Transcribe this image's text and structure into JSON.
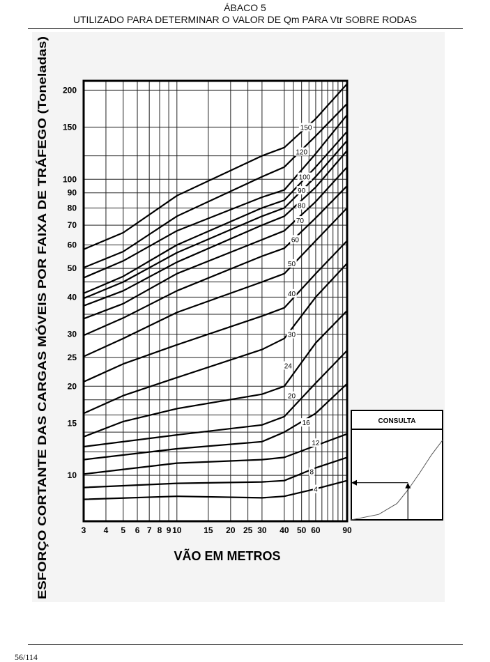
{
  "page": {
    "title": "ÁBACO 5",
    "subtitle": "UTILIZADO PARA DETERMINAR O VALOR DE Qm PARA Vtr SOBRE RODAS",
    "page_number": "56/114"
  },
  "chart_data": [
    {
      "type": "line",
      "title": "",
      "xlabel": "VÃO EM METROS",
      "ylabel": "ESFORÇO CORTANTE DAS CARGAS MÓVEIS POR FAIXA DE TRÁFEGO (Toneladas)",
      "x_scale": "log",
      "y_scale": "log",
      "xlim": [
        3,
        90
      ],
      "ylim": [
        7,
        215
      ],
      "grid": true,
      "x_grid": [
        3,
        4,
        5,
        6,
        7,
        8,
        9,
        10,
        15,
        20,
        25,
        30,
        40,
        45,
        50,
        55,
        60,
        65,
        70,
        75,
        80,
        85,
        90
      ],
      "y_grid": [
        10,
        12,
        14,
        16,
        18,
        20,
        25,
        30,
        35,
        40,
        45,
        50,
        60,
        70,
        80,
        90,
        100,
        120,
        150,
        200
      ],
      "x_ticks": [
        {
          "v": 3,
          "t": "3"
        },
        {
          "v": 4,
          "t": "4"
        },
        {
          "v": 5,
          "t": "5"
        },
        {
          "v": 6,
          "t": "6"
        },
        {
          "v": 7,
          "t": "7"
        },
        {
          "v": 8,
          "t": "8"
        },
        {
          "v": 9,
          "t": "9"
        },
        {
          "v": 10,
          "t": "10"
        },
        {
          "v": 15,
          "t": "15"
        },
        {
          "v": 20,
          "t": "20"
        },
        {
          "v": 25,
          "t": "25"
        },
        {
          "v": 30,
          "t": "30"
        },
        {
          "v": 40,
          "t": "40"
        },
        {
          "v": 50,
          "t": "50"
        },
        {
          "v": 60,
          "t": "60"
        },
        {
          "v": 90,
          "t": "90"
        }
      ],
      "y_ticks": [
        {
          "v": 10,
          "t": "10"
        },
        {
          "v": 15,
          "t": "15"
        },
        {
          "v": 20,
          "t": "20"
        },
        {
          "v": 25,
          "t": "25"
        },
        {
          "v": 30,
          "t": "30"
        },
        {
          "v": 40,
          "t": "40"
        },
        {
          "v": 50,
          "t": "50"
        },
        {
          "v": 60,
          "t": "60"
        },
        {
          "v": 70,
          "t": "70"
        },
        {
          "v": 80,
          "t": "80"
        },
        {
          "v": 90,
          "t": "90"
        },
        {
          "v": 100,
          "t": "100"
        },
        {
          "v": 150,
          "t": "150"
        },
        {
          "v": 200,
          "t": "200"
        }
      ],
      "series": [
        {
          "name": "4",
          "label_x": 60,
          "label_y": 9,
          "points": [
            [
              3,
              8.3
            ],
            [
              10,
              8.5
            ],
            [
              30,
              8.4
            ],
            [
              40,
              8.5
            ],
            [
              60,
              9.0
            ],
            [
              90,
              9.6
            ]
          ]
        },
        {
          "name": "8",
          "label_x": 57,
          "label_y": 10.3,
          "points": [
            [
              3,
              9.1
            ],
            [
              10,
              9.4
            ],
            [
              30,
              9.5
            ],
            [
              40,
              9.6
            ],
            [
              60,
              10.6
            ],
            [
              90,
              11.5
            ]
          ]
        },
        {
          "name": "12",
          "label_x": 60,
          "label_y": 12.9,
          "points": [
            [
              3,
              10.1
            ],
            [
              10,
              11.0
            ],
            [
              30,
              11.3
            ],
            [
              40,
              11.5
            ],
            [
              60,
              12.6
            ],
            [
              90,
              13.8
            ]
          ]
        },
        {
          "name": "",
          "points": [
            [
              3,
              11.3
            ],
            [
              10,
              12.3
            ],
            [
              30,
              13.0
            ],
            [
              40,
              14.0
            ],
            [
              60,
              16.2
            ],
            [
              90,
              20.4
            ]
          ]
        },
        {
          "name": "16",
          "label_x": 53,
          "label_y": 15.1,
          "points": [
            [
              3,
              12.5
            ],
            [
              10,
              13.7
            ],
            [
              30,
              14.8
            ],
            [
              40,
              15.8
            ],
            [
              60,
              20.5
            ],
            [
              90,
              26.4
            ]
          ]
        },
        {
          "name": "20",
          "label_x": 44,
          "label_y": 18.6,
          "points": [
            [
              3,
              13.5
            ],
            [
              5,
              15.2
            ],
            [
              10,
              16.8
            ],
            [
              30,
              18.8
            ],
            [
              40,
              20.0
            ],
            [
              60,
              28.0
            ],
            [
              90,
              36.0
            ]
          ]
        },
        {
          "name": "24",
          "label_x": 42,
          "label_y": 23.5,
          "points": [
            [
              3,
              16.2
            ],
            [
              5,
              18.6
            ],
            [
              10,
              21.4
            ],
            [
              30,
              26.6
            ],
            [
              40,
              29.0
            ],
            [
              60,
              40.0
            ],
            [
              90,
              52.0
            ]
          ]
        },
        {
          "name": "30",
          "label_x": 44,
          "label_y": 30.0,
          "points": [
            [
              3,
              20.7
            ],
            [
              5,
              23.8
            ],
            [
              10,
              27.6
            ],
            [
              30,
              34.5
            ],
            [
              40,
              36.8
            ],
            [
              60,
              48.0
            ],
            [
              90,
              62.0
            ]
          ]
        },
        {
          "name": "40",
          "label_x": 44,
          "label_y": 41.2,
          "points": [
            [
              3,
              25.2
            ],
            [
              5,
              29.0
            ],
            [
              10,
              35.5
            ],
            [
              30,
              45.0
            ],
            [
              40,
              48.0
            ],
            [
              60,
              62.0
            ],
            [
              90,
              80.0
            ]
          ]
        },
        {
          "name": "50",
          "label_x": 44,
          "label_y": 52.0,
          "points": [
            [
              3,
              29.7
            ],
            [
              5,
              34.0
            ],
            [
              10,
              42.0
            ],
            [
              30,
              55.0
            ],
            [
              40,
              58.5
            ],
            [
              60,
              74.0
            ],
            [
              90,
              95.0
            ]
          ]
        },
        {
          "name": "60",
          "label_x": 46,
          "label_y": 62.7,
          "points": [
            [
              3,
              33.8
            ],
            [
              5,
              38.0
            ],
            [
              10,
              48.0
            ],
            [
              30,
              62.5
            ],
            [
              40,
              67.0
            ],
            [
              60,
              84.0
            ],
            [
              90,
              110.0
            ]
          ]
        },
        {
          "name": "70",
          "label_x": 49,
          "label_y": 72.7,
          "points": [
            [
              3,
              37.4
            ],
            [
              5,
              42.0
            ],
            [
              10,
              52.5
            ],
            [
              30,
              70.0
            ],
            [
              40,
              75.0
            ],
            [
              60,
              94.0
            ],
            [
              90,
              125.0
            ]
          ]
        },
        {
          "name": "80",
          "label_x": 50,
          "label_y": 81.7,
          "points": [
            [
              3,
              39.6
            ],
            [
              5,
              45.0
            ],
            [
              10,
              56.5
            ],
            [
              30,
              75.0
            ],
            [
              40,
              80.0
            ],
            [
              60,
              102.0
            ],
            [
              90,
              135.0
            ]
          ]
        },
        {
          "name": "90",
          "label_x": 50,
          "label_y": 91.8,
          "points": [
            [
              3,
              41.2
            ],
            [
              5,
              47.0
            ],
            [
              10,
              60.0
            ],
            [
              30,
              80.0
            ],
            [
              40,
              85.0
            ],
            [
              60,
              110.0
            ],
            [
              90,
              145.0
            ]
          ]
        },
        {
          "name": "100",
          "label_x": 52,
          "label_y": 102.0,
          "points": [
            [
              3,
              46.5
            ],
            [
              5,
              53.0
            ],
            [
              10,
              67.0
            ],
            [
              30,
              87.0
            ],
            [
              40,
              92.0
            ],
            [
              60,
              122.0
            ],
            [
              90,
              165.0
            ]
          ]
        },
        {
          "name": "120",
          "label_x": 50,
          "label_y": 124.0,
          "points": [
            [
              3,
              50.3
            ],
            [
              5,
              57.0
            ],
            [
              10,
              75.0
            ],
            [
              30,
              102.0
            ],
            [
              40,
              110.0
            ],
            [
              60,
              140.0
            ],
            [
              90,
              180.0
            ]
          ]
        },
        {
          "name": "150",
          "label_x": 53,
          "label_y": 150.0,
          "points": [
            [
              3,
              58.0
            ],
            [
              5,
              66.0
            ],
            [
              10,
              88.0
            ],
            [
              30,
              120.0
            ],
            [
              40,
              128.0
            ],
            [
              60,
              160.0
            ],
            [
              90,
              210.0
            ]
          ]
        }
      ]
    }
  ],
  "inset": {
    "title": "CONSULTA",
    "curve_points": [
      [
        0,
        0
      ],
      [
        0.3,
        0.06
      ],
      [
        0.5,
        0.18
      ],
      [
        0.62,
        0.33
      ],
      [
        0.75,
        0.52
      ],
      [
        0.88,
        0.72
      ],
      [
        1.0,
        0.88
      ]
    ],
    "lookup_x": 0.62,
    "lookup_y": 0.41
  }
}
